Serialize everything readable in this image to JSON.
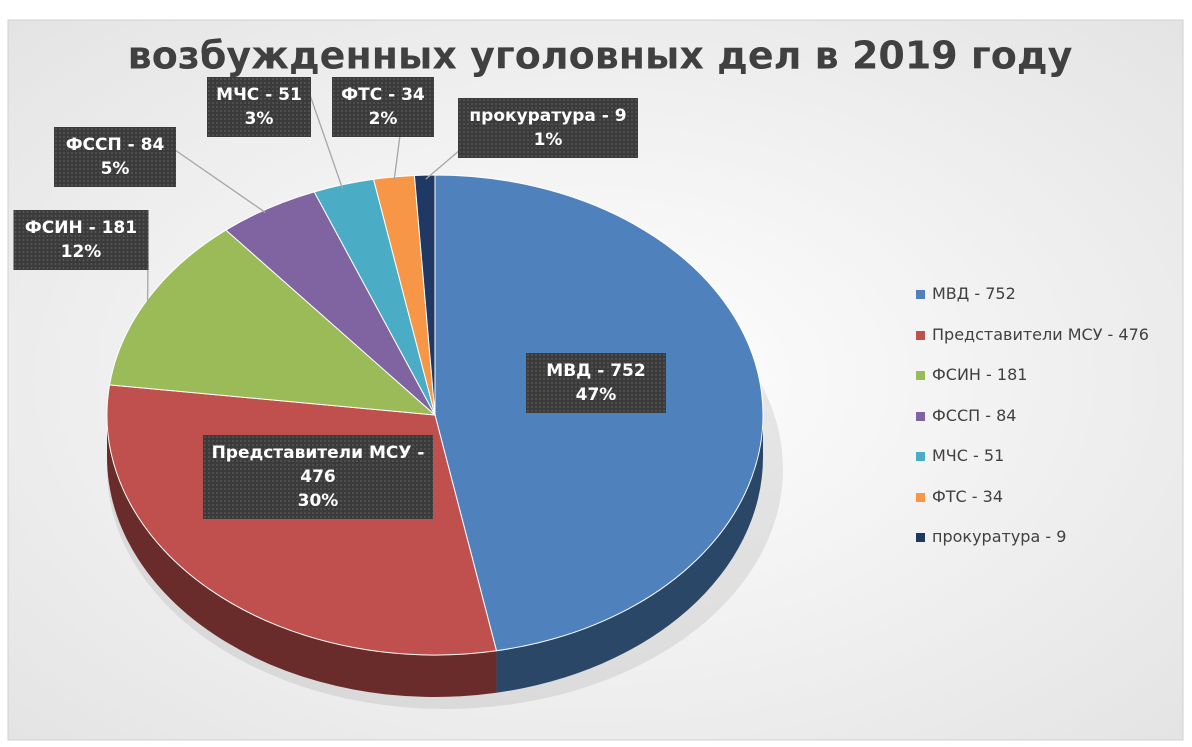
{
  "chart_data": {
    "type": "pie",
    "title": "возбужденных уголовных дел в 2019 году",
    "categories": [
      "МВД - 752",
      "Представители МСУ - 476",
      "ФСИН - 181",
      "ФССП - 84",
      "МЧС - 51",
      "ФТС - 34",
      "прокуратура - 9"
    ],
    "values": [
      47,
      30,
      12,
      5,
      3,
      2,
      1
    ],
    "value_labels": [
      "47%",
      "30%",
      "12%",
      "5%",
      "3%",
      "2%",
      "1%"
    ],
    "colors": [
      "#4f81bd",
      "#c0504d",
      "#9bbb59",
      "#8064a2",
      "#4bacc6",
      "#f79646",
      "#1f3864"
    ],
    "legend": "right"
  }
}
